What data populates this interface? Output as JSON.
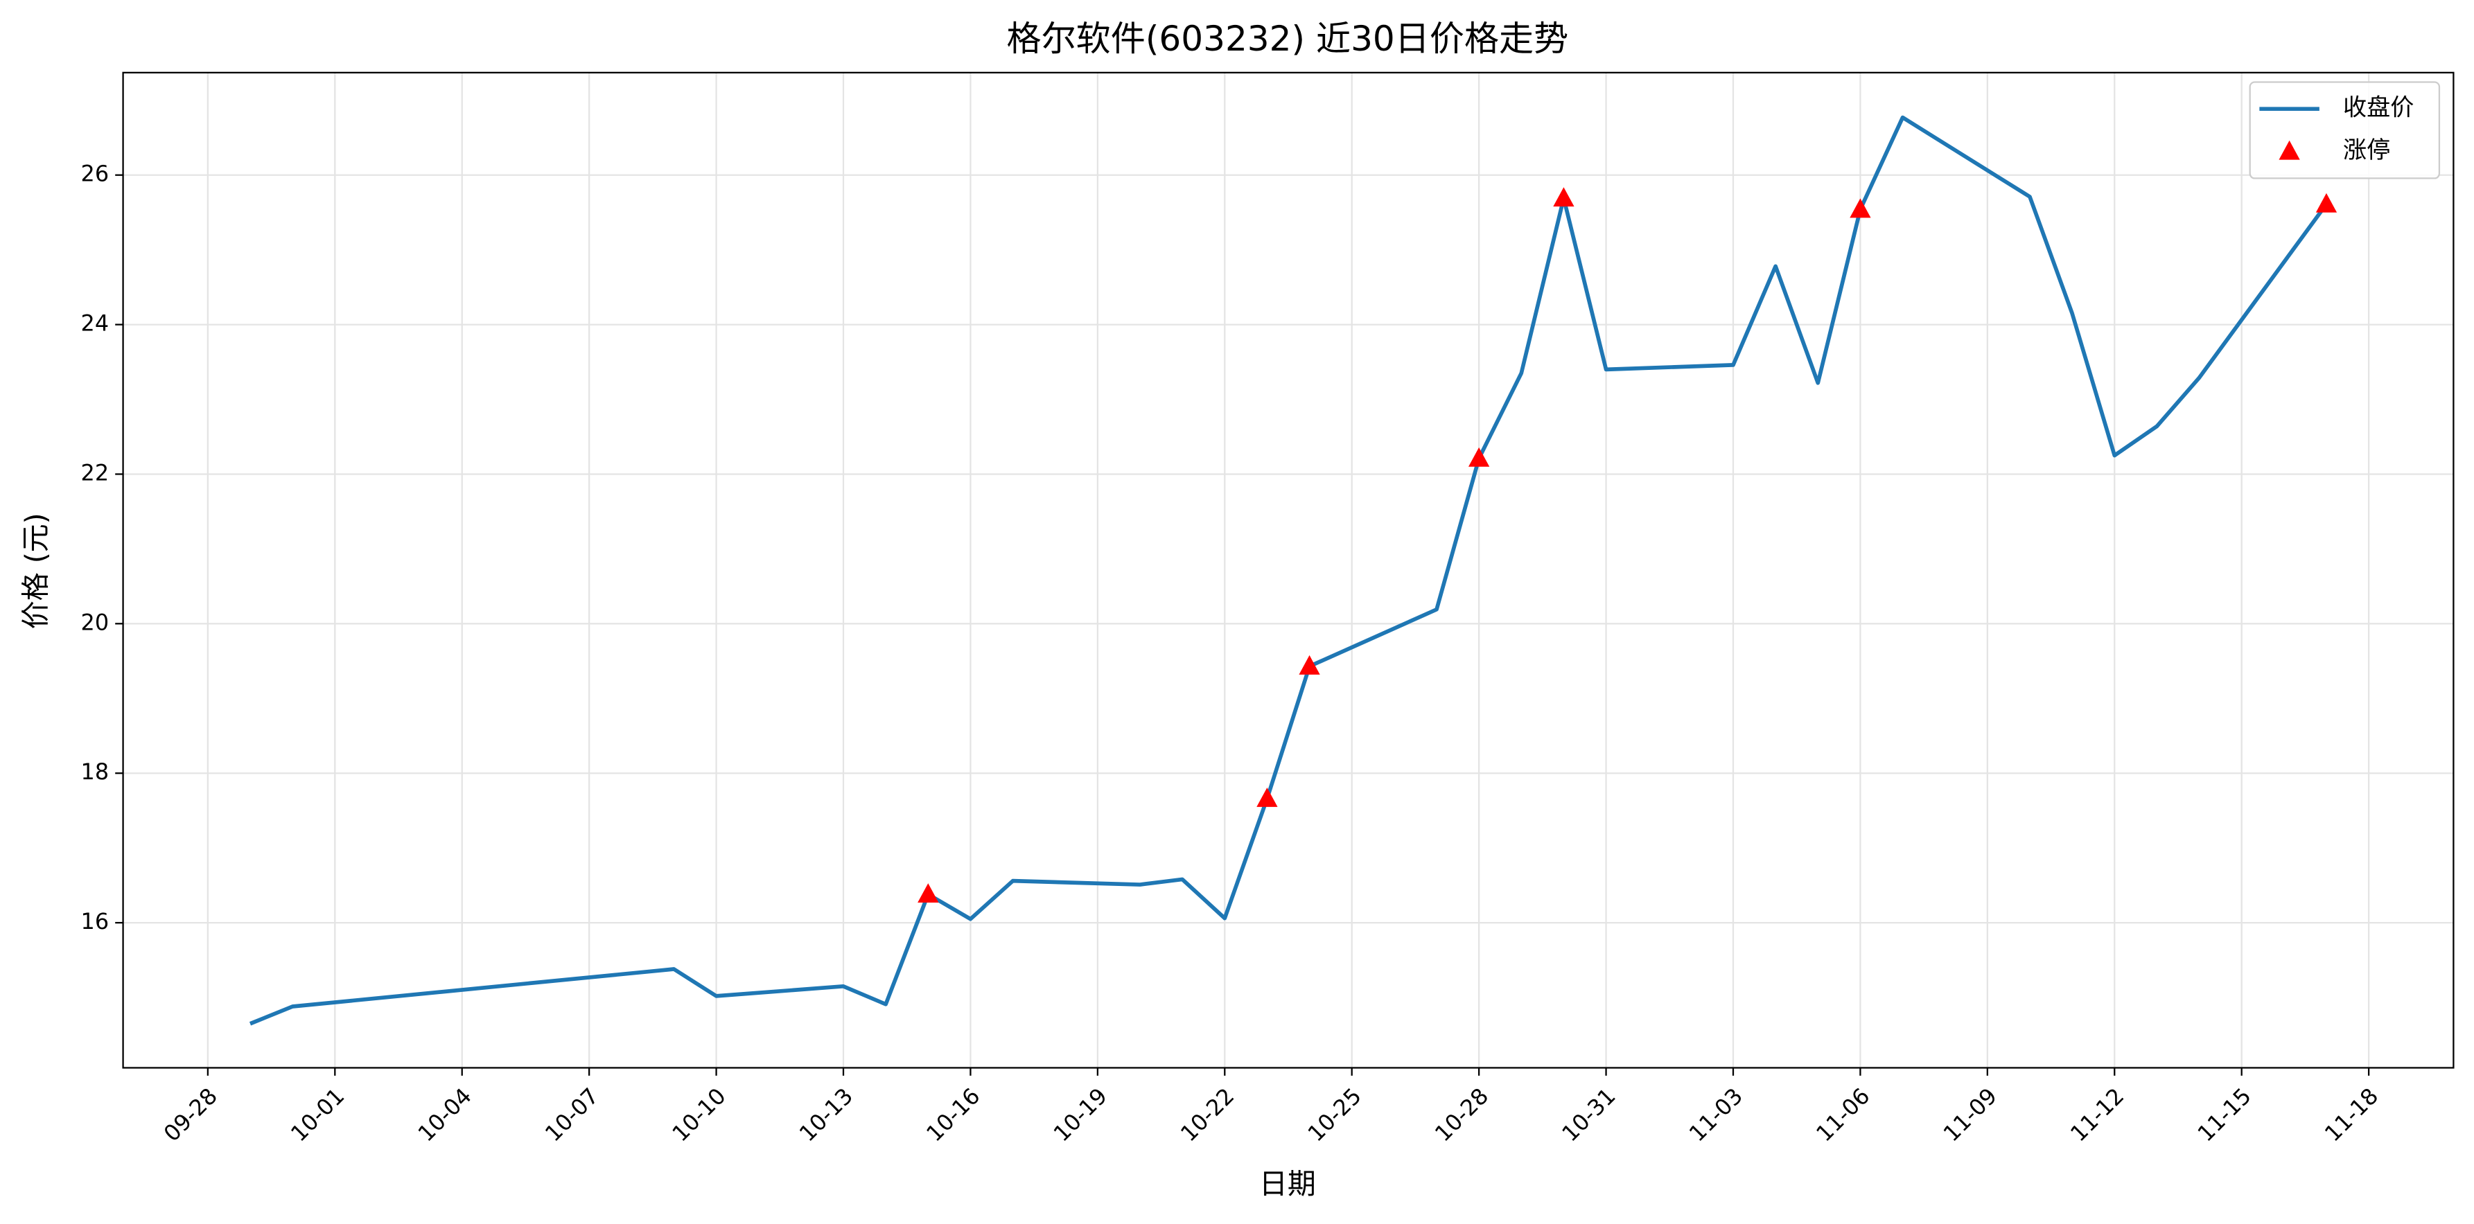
{
  "chart_data": {
    "type": "line",
    "title": "格尔软件(603232) 近30日价格走势",
    "xlabel": "日期",
    "ylabel": "价格 (元)",
    "series": [
      {
        "name": "收盘价",
        "color": "#1f77b4",
        "x": [
          "09-29",
          "09-30",
          "10-09",
          "10-10",
          "10-13",
          "10-14",
          "10-15",
          "10-16",
          "10-17",
          "10-20",
          "10-21",
          "10-22",
          "10-23",
          "10-24",
          "10-27",
          "10-28",
          "10-29",
          "10-30",
          "10-31",
          "11-03",
          "11-04",
          "11-05",
          "11-06",
          "11-07",
          "11-10",
          "11-11",
          "11-12",
          "11-13",
          "11-14",
          "11-17"
        ],
        "values": [
          14.65,
          14.88,
          15.38,
          15.02,
          15.15,
          14.91,
          16.38,
          16.05,
          16.56,
          16.51,
          16.58,
          16.06,
          17.66,
          19.43,
          20.19,
          22.21,
          23.35,
          25.69,
          23.4,
          23.46,
          24.78,
          23.22,
          25.54,
          26.77,
          25.71,
          24.15,
          22.25,
          22.64,
          23.29,
          25.61
        ]
      },
      {
        "name": "涨停",
        "color": "#ff0000",
        "marker": "triangle",
        "x": [
          "10-15",
          "10-23",
          "10-24",
          "10-28",
          "10-30",
          "11-06",
          "11-17"
        ],
        "values": [
          16.38,
          17.66,
          19.43,
          22.21,
          25.69,
          25.54,
          25.61
        ]
      }
    ],
    "xlim": [
      "09-26",
      "11-20"
    ],
    "xticks": [
      "09-28",
      "10-01",
      "10-04",
      "10-07",
      "10-10",
      "10-13",
      "10-16",
      "10-19",
      "10-22",
      "10-25",
      "10-28",
      "10-31",
      "11-03",
      "11-06",
      "11-09",
      "11-12",
      "11-15",
      "11-18"
    ],
    "ylim": [
      14.06,
      27.37
    ],
    "yticks": [
      16,
      18,
      20,
      22,
      24,
      26
    ],
    "grid": true,
    "legend": "upper right"
  }
}
